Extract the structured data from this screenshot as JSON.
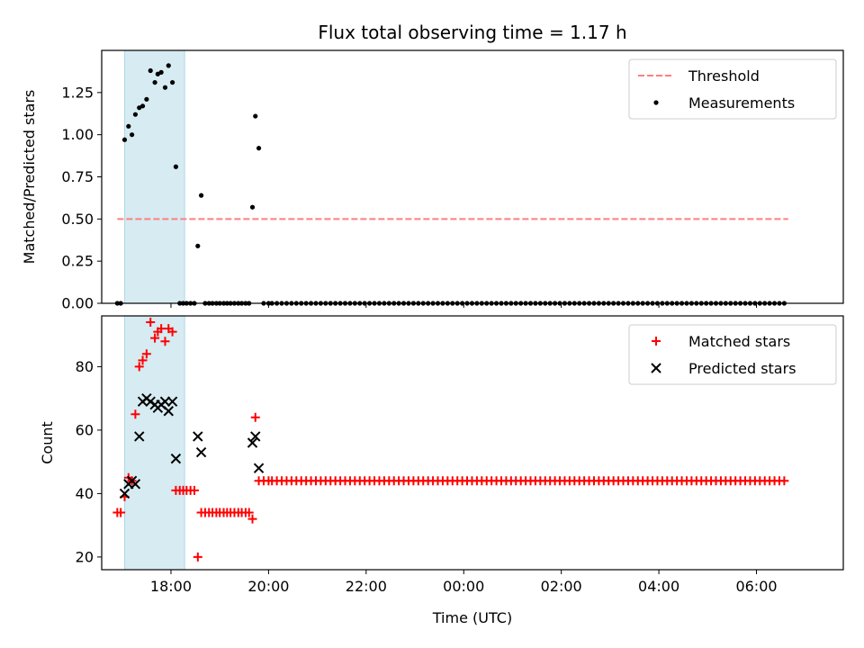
{
  "chart_data": {
    "title": "Flux total observing time = 1.17 h",
    "xlabel": "Time (UTC)",
    "xlim": [
      16.58,
      31.78
    ],
    "x_ticks": [
      {
        "value": 18,
        "label": "18:00"
      },
      {
        "value": 20,
        "label": "20:00"
      },
      {
        "value": 22,
        "label": "22:00"
      },
      {
        "value": 24,
        "label": "00:00"
      },
      {
        "value": 26,
        "label": "02:00"
      },
      {
        "value": 28,
        "label": "04:00"
      },
      {
        "value": 30,
        "label": "06:00"
      }
    ],
    "observing_span": {
      "start": 17.05,
      "end": 18.28,
      "color": "#add8e6"
    },
    "panels": [
      {
        "type": "scatter",
        "ylabel": "Matched/Predicted stars",
        "ylim": [
          0,
          1.5
        ],
        "y_ticks": [
          0,
          0.25,
          0.5,
          0.75,
          1.0,
          1.25
        ],
        "y_tick_labels": [
          "0.00",
          "0.25",
          "0.50",
          "0.75",
          "1.00",
          "1.25"
        ],
        "legend": {
          "position": "upper-right",
          "entries": [
            {
              "label": "Threshold",
              "marker": "dashed-line",
              "color": "#ff7f7f"
            },
            {
              "label": "Measurements",
              "marker": "dot",
              "color": "#000000"
            }
          ]
        },
        "threshold": {
          "name": "Threshold",
          "value": 0.5,
          "x_range": [
            16.9,
            30.65
          ],
          "color": "#ff7f7f"
        },
        "series": [
          {
            "name": "Measurements",
            "marker": "dot",
            "color": "#000000",
            "points": [
              [
                16.9,
                0
              ],
              [
                16.97,
                0
              ],
              [
                17.05,
                0.97
              ],
              [
                17.13,
                1.05
              ],
              [
                17.2,
                1.0
              ],
              [
                17.27,
                1.12
              ],
              [
                17.35,
                1.16
              ],
              [
                17.42,
                1.17
              ],
              [
                17.5,
                1.21
              ],
              [
                17.58,
                1.38
              ],
              [
                17.67,
                1.31
              ],
              [
                17.73,
                1.36
              ],
              [
                17.8,
                1.37
              ],
              [
                17.88,
                1.28
              ],
              [
                17.95,
                1.41
              ],
              [
                18.03,
                1.31
              ],
              [
                18.1,
                0.81
              ],
              [
                18.18,
                0
              ],
              [
                18.25,
                0
              ],
              [
                18.32,
                0
              ],
              [
                18.4,
                0
              ],
              [
                18.48,
                0
              ],
              [
                18.55,
                0.34
              ],
              [
                18.62,
                0.64
              ],
              [
                18.7,
                0
              ],
              [
                18.78,
                0
              ],
              [
                18.85,
                0
              ],
              [
                18.93,
                0
              ],
              [
                19.0,
                0
              ],
              [
                19.08,
                0
              ],
              [
                19.15,
                0
              ],
              [
                19.22,
                0
              ],
              [
                19.3,
                0
              ],
              [
                19.38,
                0
              ],
              [
                19.45,
                0
              ],
              [
                19.53,
                0
              ],
              [
                19.6,
                0
              ],
              [
                19.67,
                0.57
              ],
              [
                19.73,
                1.11
              ],
              [
                19.8,
                0.92
              ],
              [
                19.9,
                0
              ],
              [
                20.0,
                0
              ]
            ],
            "zero_run": {
              "from": 20.07,
              "to": 30.65,
              "step": 0.1,
              "value": 0
            }
          }
        ]
      },
      {
        "type": "scatter",
        "ylabel": "Count",
        "ylim": [
          16,
          96
        ],
        "y_ticks": [
          20,
          40,
          60,
          80
        ],
        "y_tick_labels": [
          "20",
          "40",
          "60",
          "80"
        ],
        "legend": {
          "position": "upper-right",
          "entries": [
            {
              "label": "Matched stars",
              "marker": "plus",
              "color": "#ff0000"
            },
            {
              "label": "Predicted stars",
              "marker": "x",
              "color": "#000000"
            }
          ]
        },
        "series": [
          {
            "name": "Matched stars",
            "marker": "plus",
            "color": "#ff0000",
            "points": [
              [
                16.9,
                34
              ],
              [
                16.97,
                34
              ],
              [
                17.05,
                39
              ],
              [
                17.13,
                45
              ],
              [
                17.2,
                44
              ],
              [
                17.27,
                65
              ],
              [
                17.35,
                80
              ],
              [
                17.42,
                82
              ],
              [
                17.5,
                84
              ],
              [
                17.58,
                94
              ],
              [
                17.67,
                89
              ],
              [
                17.73,
                91
              ],
              [
                17.8,
                92
              ],
              [
                17.88,
                88
              ],
              [
                17.95,
                92
              ],
              [
                18.03,
                91
              ],
              [
                18.1,
                41
              ],
              [
                18.18,
                41
              ],
              [
                18.25,
                41
              ],
              [
                18.32,
                41
              ],
              [
                18.4,
                41
              ],
              [
                18.48,
                41
              ],
              [
                18.55,
                20
              ],
              [
                18.62,
                34
              ],
              [
                18.7,
                34
              ],
              [
                18.78,
                34
              ],
              [
                18.85,
                34
              ],
              [
                18.93,
                34
              ],
              [
                19.0,
                34
              ],
              [
                19.08,
                34
              ],
              [
                19.15,
                34
              ],
              [
                19.22,
                34
              ],
              [
                19.3,
                34
              ],
              [
                19.38,
                34
              ],
              [
                19.45,
                34
              ],
              [
                19.53,
                34
              ],
              [
                19.6,
                34
              ],
              [
                19.67,
                32
              ],
              [
                19.73,
                64
              ],
              [
                19.8,
                44
              ],
              [
                19.9,
                44
              ],
              [
                20.0,
                44
              ]
            ],
            "constant_run": {
              "from": 20.07,
              "to": 30.65,
              "step": 0.1,
              "value": 44
            }
          },
          {
            "name": "Predicted stars",
            "marker": "x",
            "color": "#000000",
            "points": [
              [
                17.05,
                40
              ],
              [
                17.13,
                43
              ],
              [
                17.2,
                44
              ],
              [
                17.27,
                43
              ],
              [
                17.35,
                58
              ],
              [
                17.42,
                69
              ],
              [
                17.5,
                70
              ],
              [
                17.58,
                69
              ],
              [
                17.67,
                68
              ],
              [
                17.73,
                67
              ],
              [
                17.8,
                68
              ],
              [
                17.88,
                69
              ],
              [
                17.95,
                66
              ],
              [
                18.03,
                69
              ],
              [
                18.1,
                51
              ],
              [
                18.55,
                58
              ],
              [
                18.62,
                53
              ],
              [
                19.67,
                56
              ],
              [
                19.73,
                58
              ],
              [
                19.8,
                48
              ]
            ]
          }
        ]
      }
    ]
  }
}
